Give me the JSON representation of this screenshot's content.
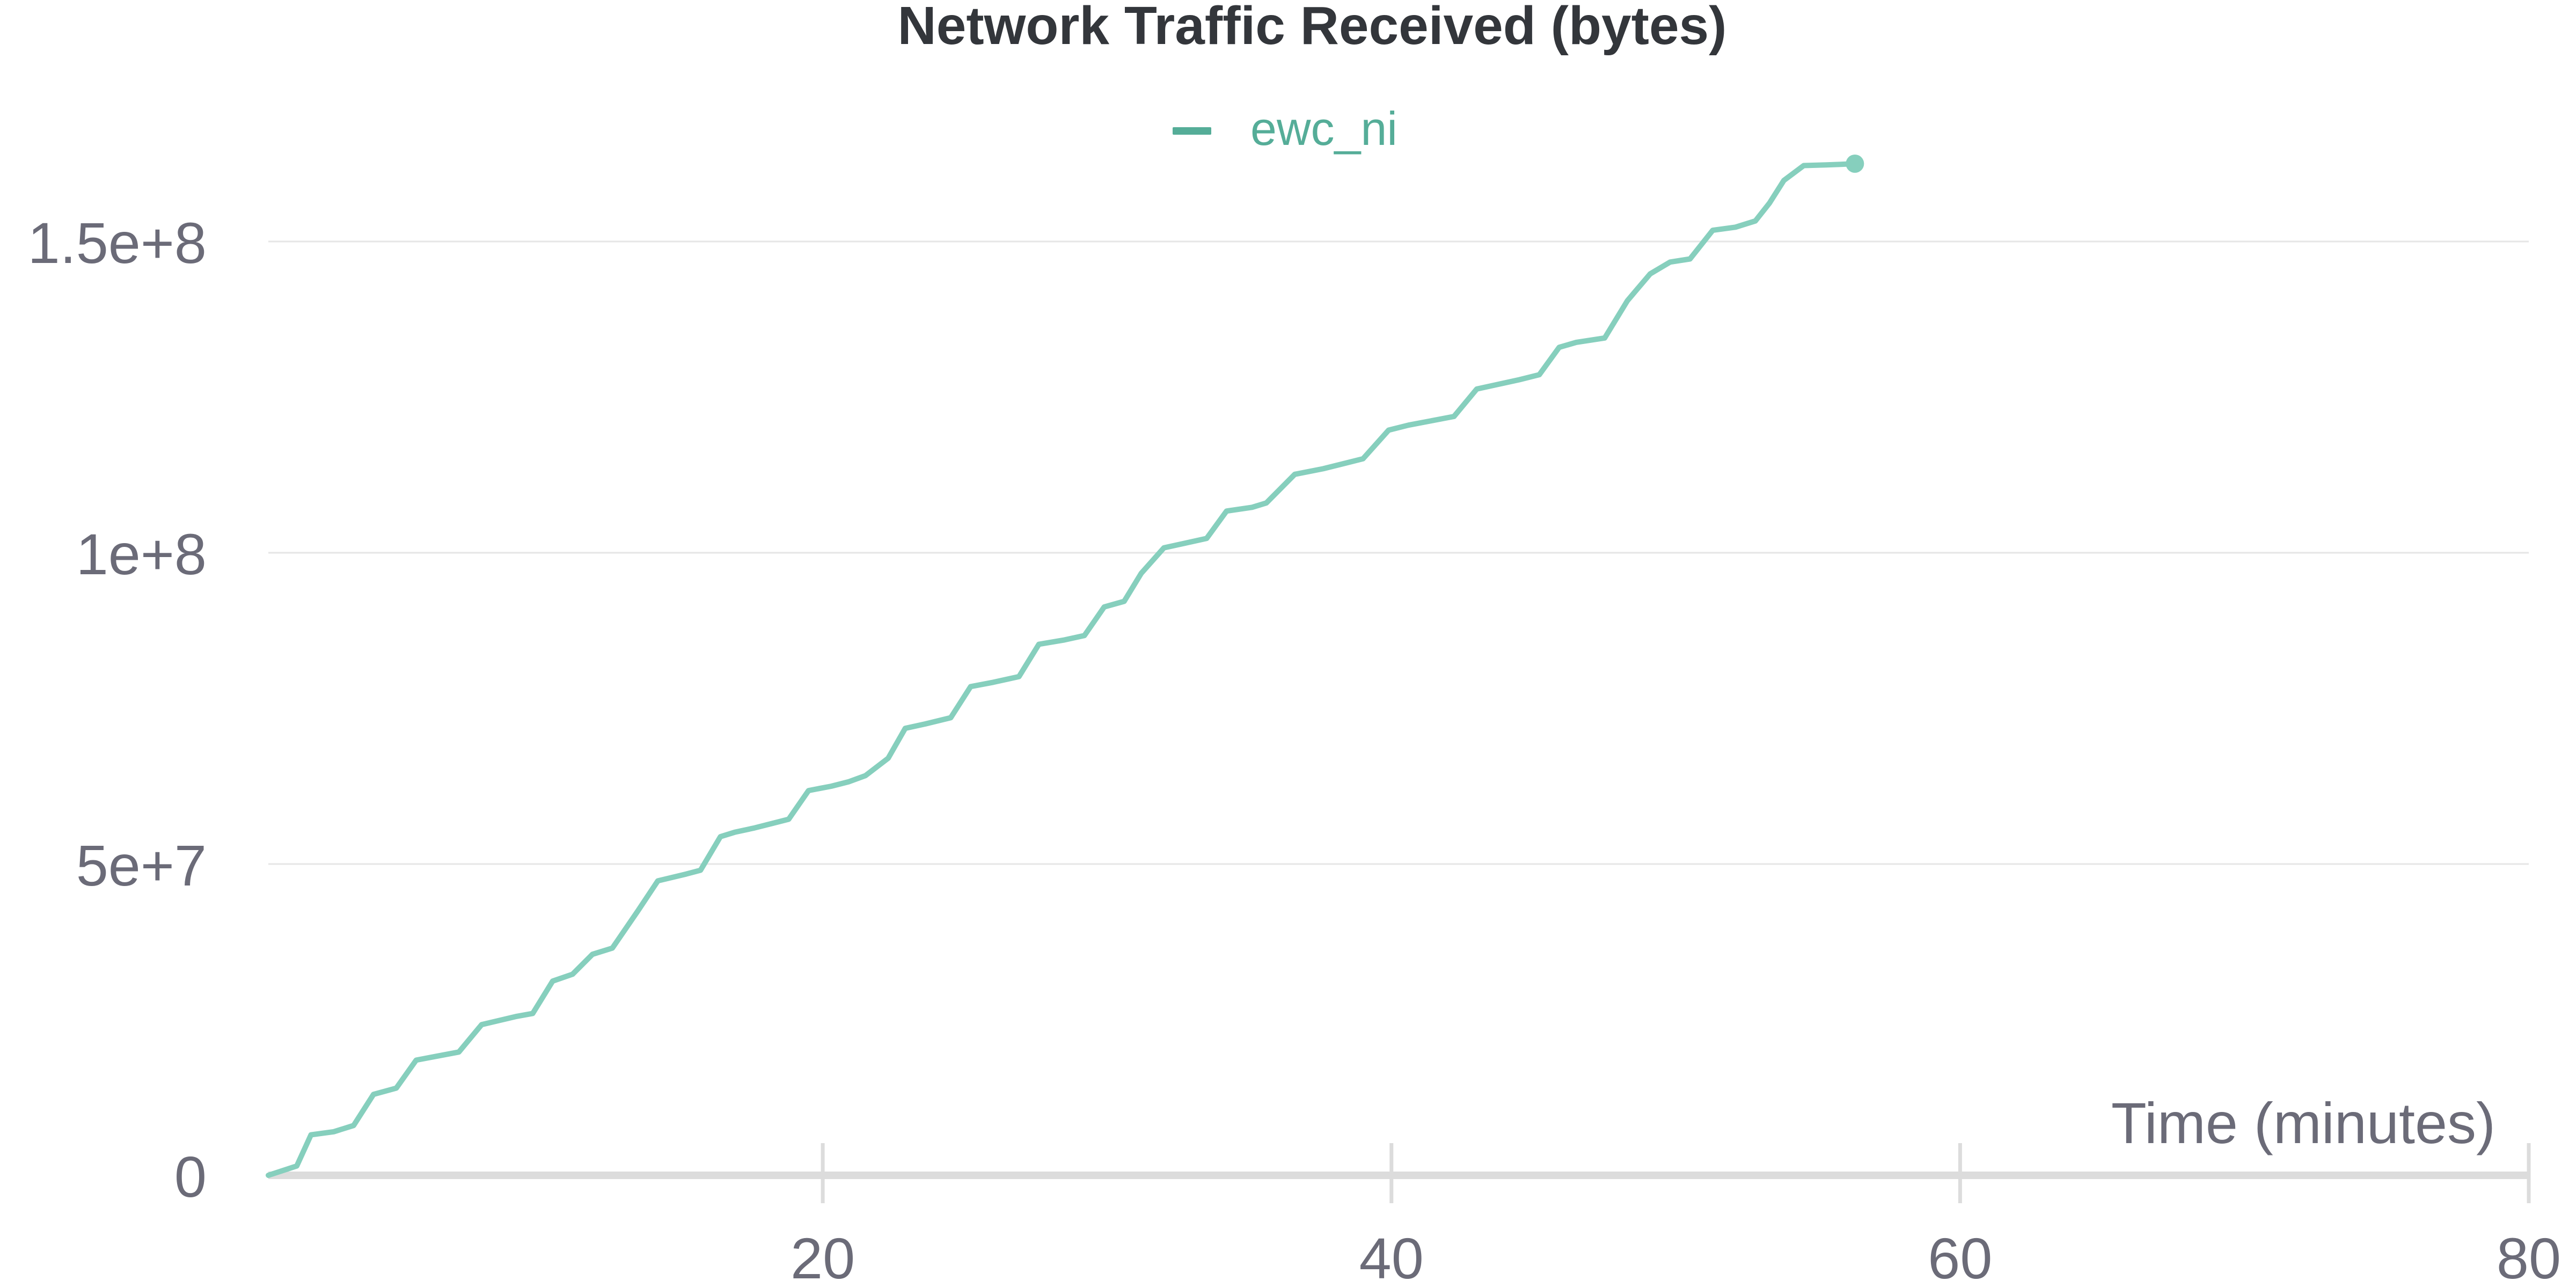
{
  "chart_data": {
    "type": "line",
    "title": "Network Traffic Received (bytes)",
    "xlabel": "Time (minutes)",
    "ylabel": "",
    "xlim": [
      0.5,
      80
    ],
    "ylim": [
      0,
      175000000
    ],
    "x_ticks": [
      20,
      40,
      60,
      80
    ],
    "x_tick_labels": [
      "20",
      "40",
      "60",
      "80"
    ],
    "y_ticks": [
      0,
      50000000,
      100000000,
      150000000
    ],
    "y_tick_labels": [
      "0",
      "5e+7",
      "1e+8",
      "1.5e+8"
    ],
    "grid": true,
    "legend_position": "top-center",
    "colors": {
      "series": "#86cfbd",
      "legend_marker": "#55ad98",
      "legend_text": "#55ad98",
      "grid": "#e6e6e6",
      "axis": "#dcdcdc",
      "title": "#33363b",
      "ticks": "#6b6b78"
    },
    "series": [
      {
        "name": "ewc_ni",
        "x": [
          0.5,
          1.5,
          2.0,
          2.8,
          3.5,
          4.2,
          5.0,
          5.7,
          6.5,
          7.2,
          8.0,
          9.2,
          9.8,
          10.5,
          11.2,
          11.9,
          12.6,
          13.5,
          14.2,
          15.2,
          15.7,
          16.4,
          16.9,
          17.6,
          18.2,
          18.8,
          19.5,
          20.3,
          20.9,
          21.5,
          22.3,
          22.9,
          23.6,
          24.5,
          25.2,
          26.0,
          26.9,
          27.6,
          28.5,
          29.2,
          29.9,
          30.6,
          31.2,
          32.0,
          32.7,
          33.5,
          34.2,
          35.1,
          35.6,
          36.6,
          37.6,
          38.3,
          39.0,
          39.9,
          40.6,
          41.4,
          42.2,
          43.0,
          43.8,
          44.5,
          45.2,
          45.9,
          46.5,
          47.5,
          48.3,
          49.1,
          49.8,
          50.5,
          51.3,
          52.1,
          52.8,
          53.3,
          53.8,
          54.5,
          55.3,
          55.8,
          56.3
        ],
        "values": [
          0,
          1500000,
          6500000,
          7000000,
          8000000,
          13000000,
          14000000,
          18500000,
          19200000,
          19800000,
          24200000,
          25500000,
          26000000,
          31200000,
          32300000,
          35500000,
          36500000,
          42500000,
          47300000,
          48400000,
          49000000,
          54400000,
          55100000,
          55800000,
          56500000,
          57200000,
          61800000,
          62500000,
          63200000,
          64200000,
          67000000,
          71800000,
          72500000,
          73500000,
          78500000,
          79200000,
          80100000,
          85300000,
          86000000,
          86700000,
          91300000,
          92200000,
          96700000,
          100800000,
          101500000,
          102300000,
          106700000,
          107300000,
          108000000,
          112600000,
          113500000,
          114300000,
          115100000,
          119700000,
          120500000,
          121200000,
          121900000,
          126300000,
          127100000,
          127800000,
          128600000,
          133000000,
          133800000,
          134500000,
          140500000,
          144800000,
          146700000,
          147200000,
          151800000,
          152300000,
          153300000,
          156200000,
          159800000,
          162200000,
          162300000,
          162400000,
          162500000
        ]
      }
    ]
  }
}
